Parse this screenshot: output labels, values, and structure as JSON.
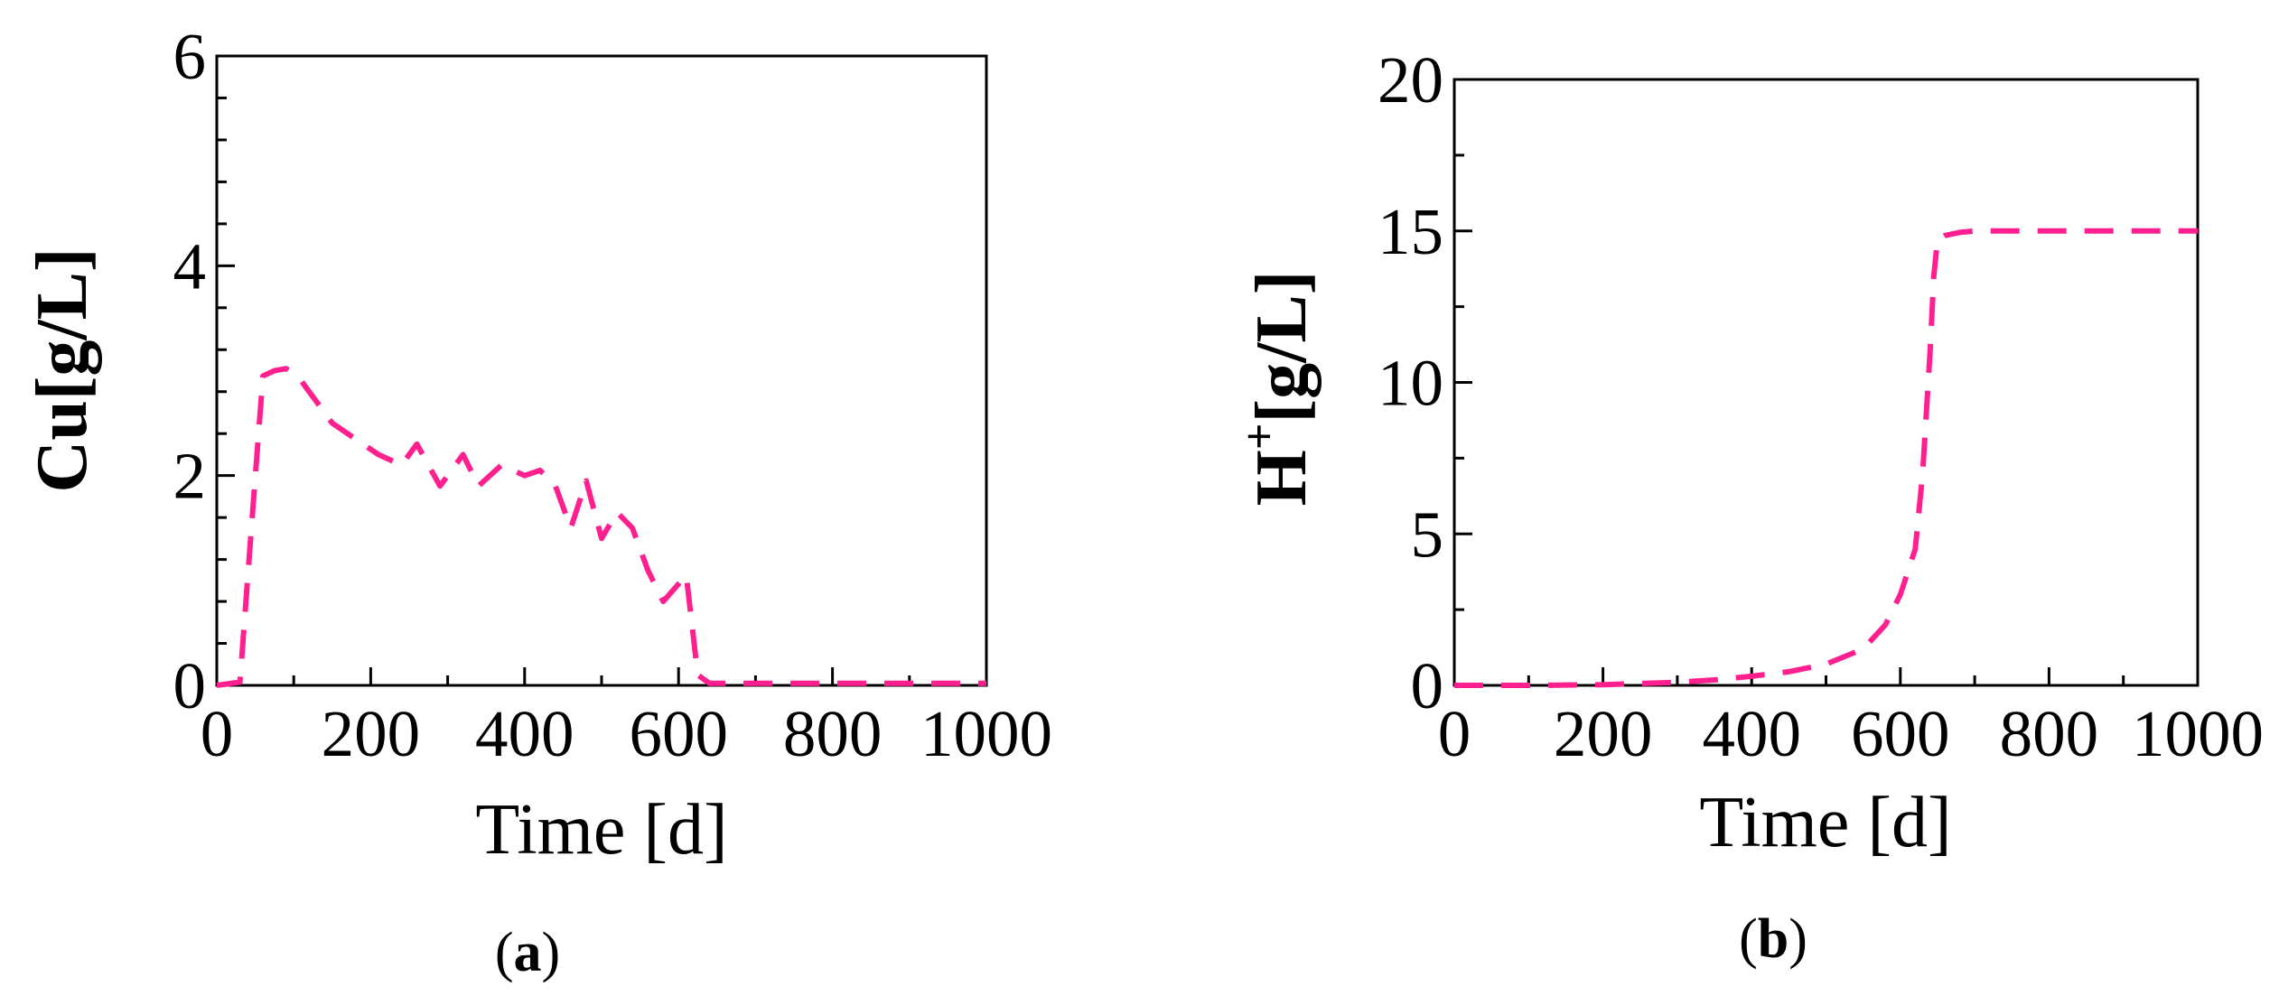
{
  "chart_data": [
    {
      "panel": "(a)",
      "panel_letter": "a",
      "type": "line",
      "xlabel": "Time [d]",
      "ylabel": "Cu[g/L]",
      "xlim": [
        0,
        1000
      ],
      "ylim": [
        0,
        6
      ],
      "x_ticks": [
        "0",
        "200",
        "400",
        "600",
        "800",
        "1000"
      ],
      "y_ticks": [
        "0",
        "2",
        "4",
        "6"
      ],
      "x_tick_values": [
        0,
        200,
        400,
        600,
        800,
        1000
      ],
      "y_tick_values": [
        0,
        2,
        4,
        6
      ],
      "grid": false,
      "series": [
        {
          "color": "#ff1f8e",
          "style": "dashed",
          "x": [
            0,
            30,
            45,
            60,
            75,
            90,
            110,
            150,
            180,
            210,
            240,
            260,
            290,
            320,
            340,
            370,
            400,
            420,
            440,
            460,
            480,
            500,
            520,
            540,
            560,
            580,
            610,
            625,
            640,
            700,
            800,
            900,
            1000
          ],
          "y": [
            0,
            0.03,
            1.5,
            2.95,
            3.0,
            3.02,
            2.9,
            2.5,
            2.35,
            2.2,
            2.1,
            2.3,
            1.9,
            2.2,
            1.9,
            2.1,
            2.0,
            2.05,
            1.9,
            1.5,
            1.95,
            1.4,
            1.65,
            1.5,
            1.1,
            0.8,
            1.05,
            0.1,
            0.02,
            0.02,
            0.02,
            0.02,
            0.02
          ]
        }
      ]
    },
    {
      "panel": "(b)",
      "panel_letter": "b",
      "type": "line",
      "xlabel": "Time [d]",
      "ylabel_main": "H",
      "ylabel_sup": "+",
      "ylabel_rest": "[g/L]",
      "xlim": [
        0,
        1000
      ],
      "ylim": [
        0,
        20
      ],
      "x_ticks": [
        "0",
        "200",
        "400",
        "600",
        "800",
        "1000"
      ],
      "y_ticks": [
        "0",
        "5",
        "10",
        "15",
        "20"
      ],
      "x_tick_values": [
        0,
        200,
        400,
        600,
        800,
        1000
      ],
      "y_tick_values": [
        0,
        5,
        10,
        15,
        20
      ],
      "grid": false,
      "series": [
        {
          "color": "#ff1f8e",
          "style": "dashed",
          "x": [
            0,
            100,
            200,
            300,
            350,
            400,
            450,
            500,
            550,
            580,
            600,
            620,
            630,
            640,
            645,
            650,
            660,
            680,
            700,
            800,
            900,
            1000
          ],
          "y": [
            0,
            0,
            0.02,
            0.1,
            0.18,
            0.3,
            0.45,
            0.7,
            1.2,
            2.0,
            3.0,
            4.5,
            7.0,
            11.0,
            13.5,
            14.7,
            14.85,
            14.95,
            15.0,
            15.0,
            15.0,
            15.0
          ]
        }
      ]
    }
  ]
}
